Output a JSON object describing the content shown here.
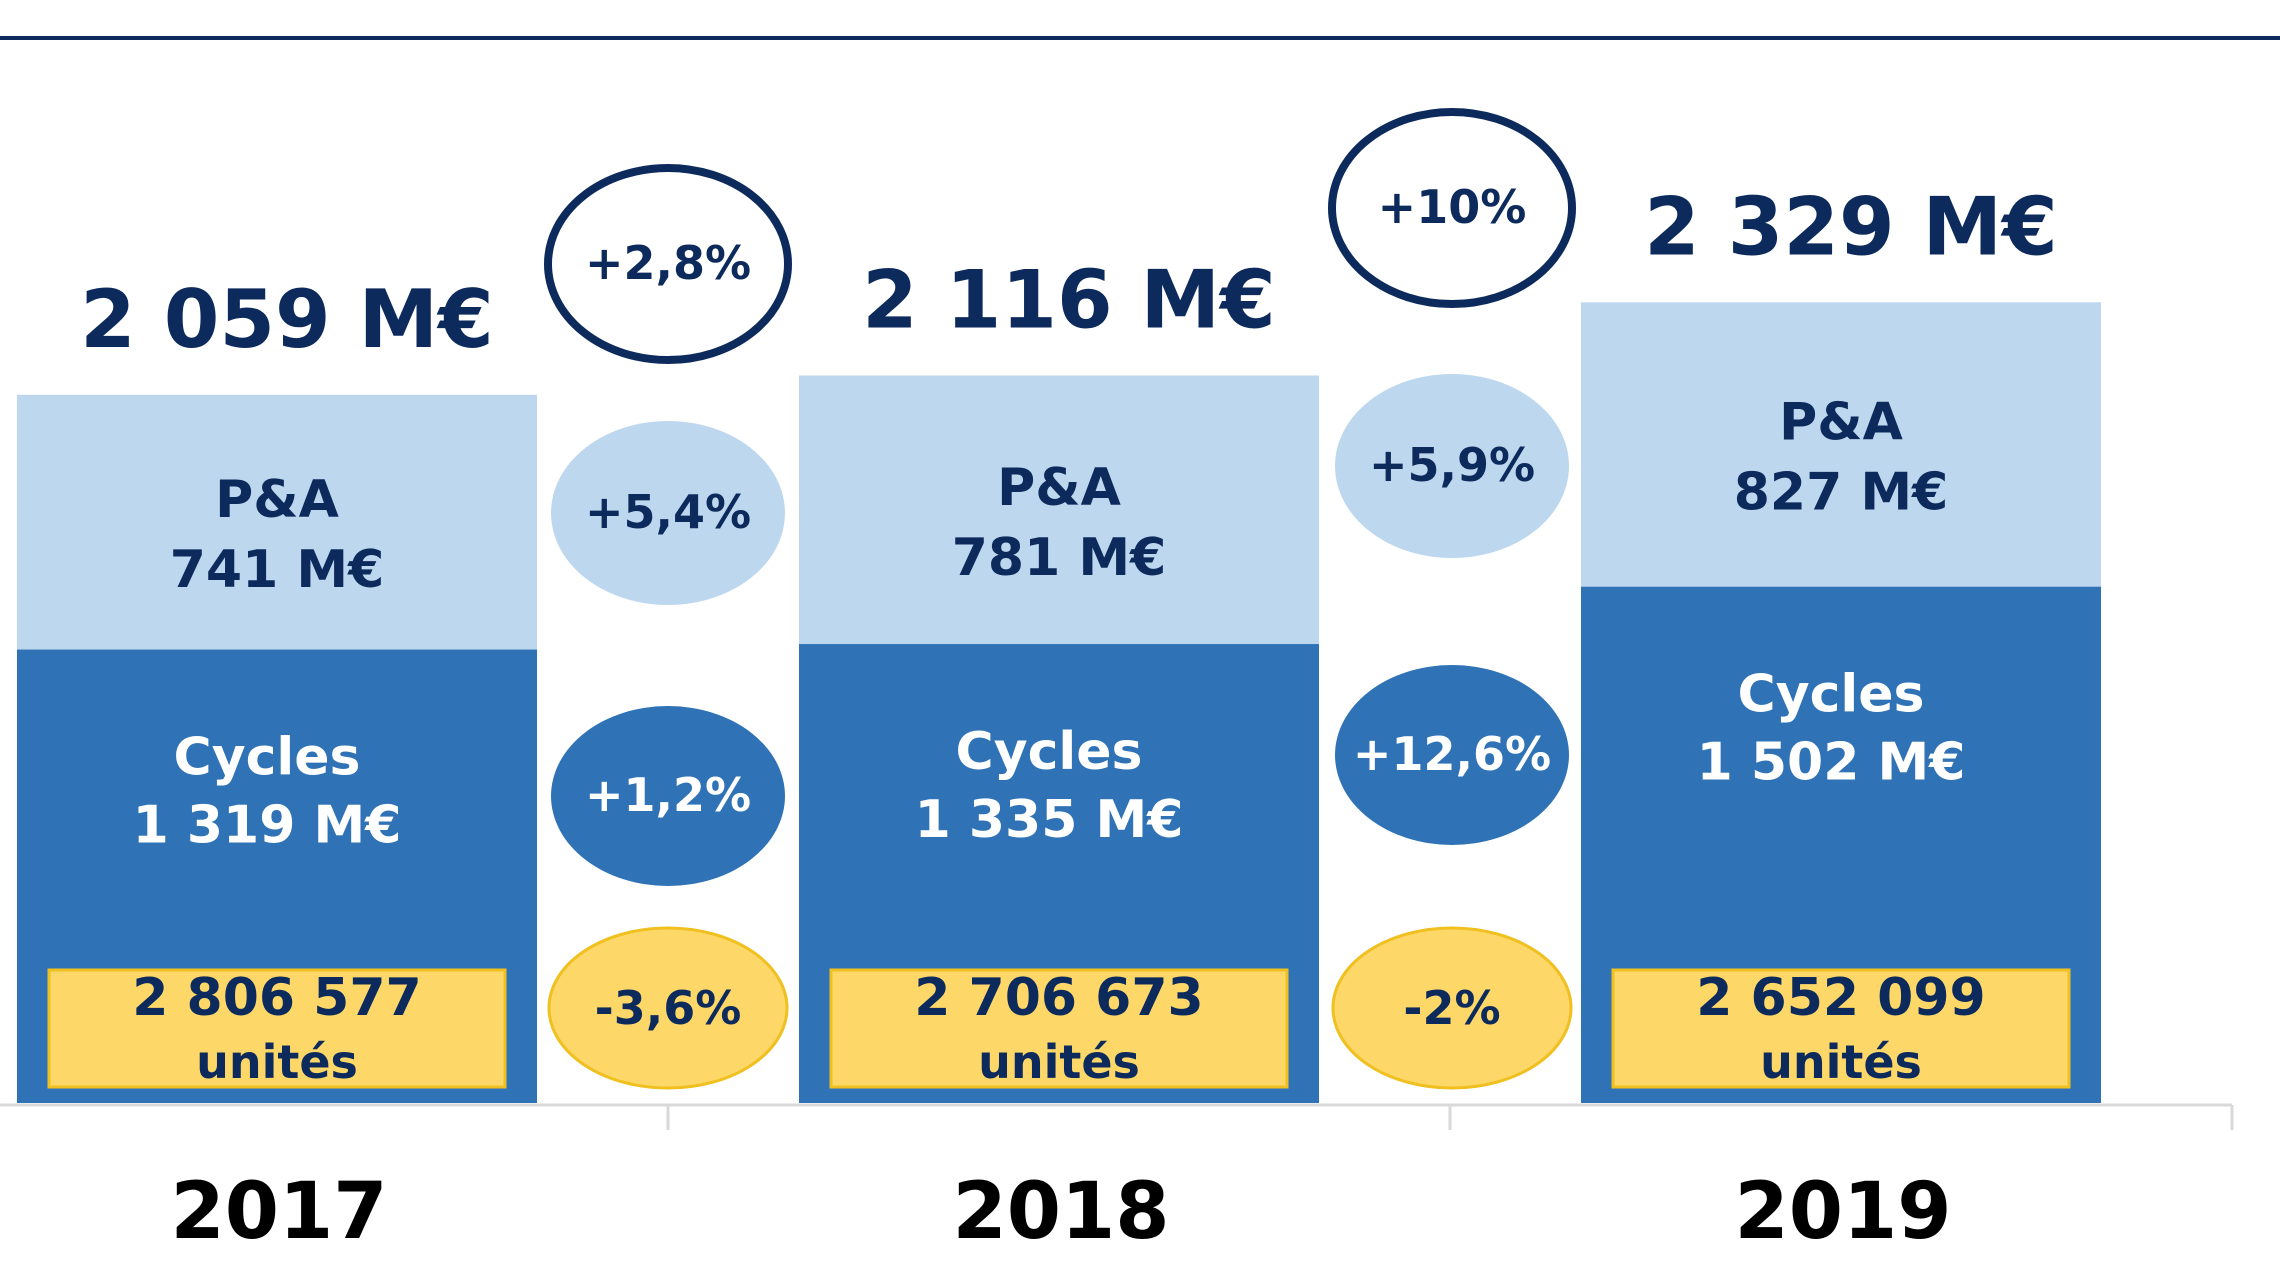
{
  "chart_data": {
    "type": "bar",
    "stacked": true,
    "categories": [
      "2017",
      "2018",
      "2019"
    ],
    "units": "M€",
    "ylim": [
      0,
      2700
    ],
    "series": [
      {
        "name": "Cycles",
        "values": [
          1319,
          1335,
          1502
        ],
        "color": "#2f73b6"
      },
      {
        "name": "P&A",
        "values": [
          741,
          781,
          827
        ],
        "color": "#bdd7ee"
      }
    ],
    "totals": [
      2059,
      2116,
      2329
    ],
    "bars": [
      {
        "year": "2017",
        "total_label": "2 059 M€",
        "pa_name": "P&A",
        "pa_value": "741 M€",
        "cycles_name": "Cycles",
        "cycles_value": "1 319 M€",
        "units_count": "2 806 577",
        "units_word": "unités"
      },
      {
        "year": "2018",
        "total_label": "2 116 M€",
        "pa_name": "P&A",
        "pa_value": "781 M€",
        "cycles_name": "Cycles",
        "cycles_value": "1 335 M€",
        "units_count": "2 706 673",
        "units_word": "unités"
      },
      {
        "year": "2019",
        "total_label": "2 329 M€",
        "pa_name": "P&A",
        "pa_value": "827 M€",
        "cycles_name": "Cycles",
        "cycles_value": "1 502 M€",
        "units_count": "2 652 099",
        "units_word": "unités"
      }
    ],
    "growth": [
      {
        "period": "2017-2018",
        "total": "+2,8%",
        "pa": "+5,4%",
        "cycles": "+1,2%",
        "units": "-3,6%"
      },
      {
        "period": "2018-2019",
        "total": "+10%",
        "pa": "+5,9%",
        "cycles": "+12,6%",
        "units": "-2%"
      }
    ],
    "colors": {
      "dark_navy": "#0d2a5c",
      "cycles_blue": "#2f73b6",
      "pa_light_blue": "#bdd7ee",
      "units_yellow": "#fdd868",
      "units_border": "#f0c020",
      "axis_gray": "#d9d9d9"
    }
  }
}
